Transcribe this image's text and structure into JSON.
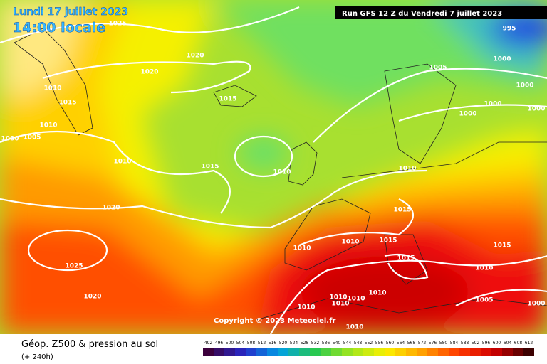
{
  "header": {
    "date": "Lundi 17 juillet 2023",
    "time": "14:00 locale",
    "run": "Run GFS 12 Z du Vendredi 7 juillet 2023"
  },
  "isobar_labels": [
    "1025",
    "1020",
    "1020",
    "1010",
    "1015",
    "1010",
    "1005",
    "1000",
    "1015",
    "1010",
    "1015",
    "1010",
    "1020",
    "1025",
    "1020",
    "995",
    "1000",
    "1005",
    "1000",
    "1000",
    "1000",
    "1000",
    "1010",
    "1015",
    "1010",
    "1010",
    "1015",
    "1015",
    "1015",
    "1010",
    "1005",
    "1000",
    "1010",
    "1010",
    "1010",
    "1010",
    "1010",
    "1010"
  ],
  "copyright": "Copyright © 2023 Meteociel.fr",
  "footer": {
    "title": "Géop. Z500 & pression au sol",
    "lead": "(+ 240h)"
  },
  "scale": {
    "labels": [
      492,
      496,
      500,
      504,
      508,
      512,
      516,
      520,
      524,
      528,
      532,
      536,
      540,
      544,
      548,
      552,
      556,
      560,
      564,
      568,
      572,
      576,
      580,
      584,
      588,
      592,
      596,
      600,
      604,
      608,
      612
    ]
  }
}
